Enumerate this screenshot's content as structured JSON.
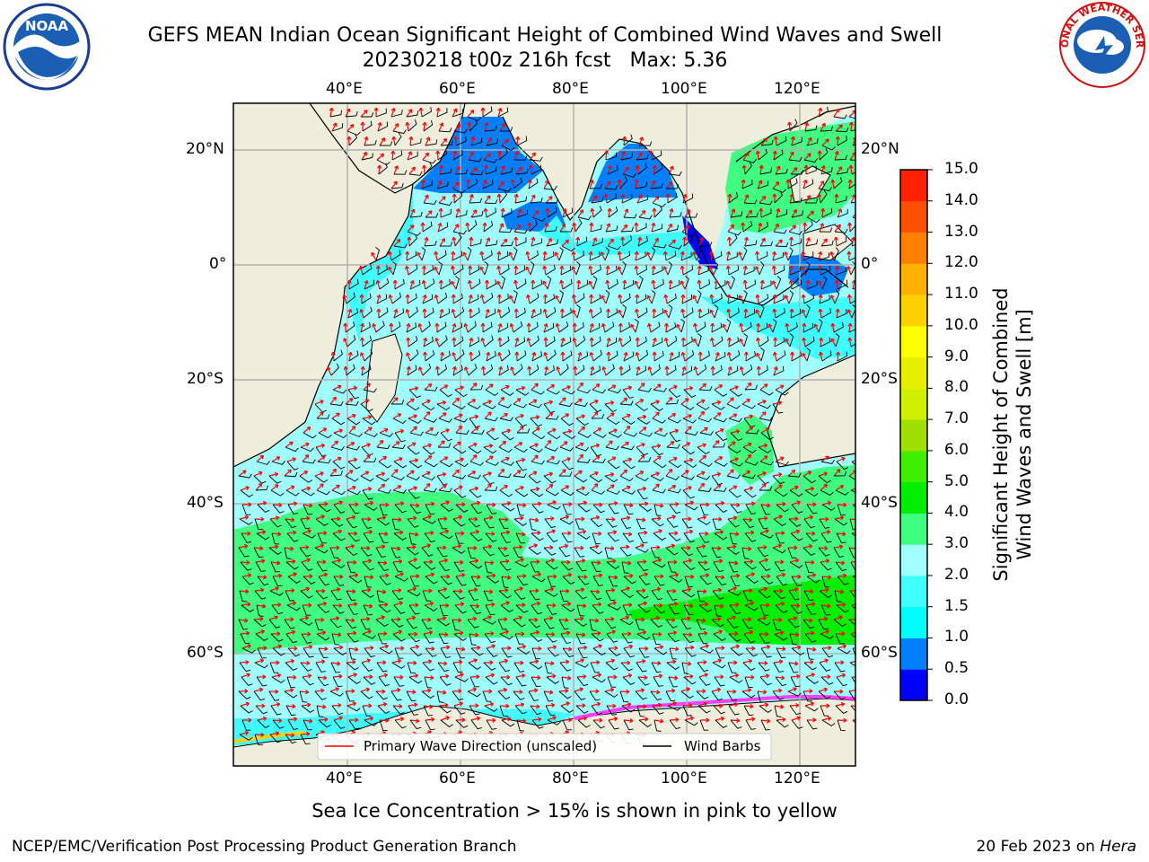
{
  "header": {
    "title_line1": "GEFS MEAN Indian Ocean Significant Height of Combined Wind Waves and Swell",
    "title_line2": "20230218 t00z 216h fcst",
    "max_label": "Max: 5.36"
  },
  "logos": {
    "left": {
      "icon": "noaa-logo",
      "text": "NOAA"
    },
    "right": {
      "icon": "nws-logo",
      "text": "NATIONAL WEATHER SERVICE"
    }
  },
  "map": {
    "lon_ticks": [
      "40°E",
      "60°E",
      "80°E",
      "100°E",
      "120°E"
    ],
    "lat_ticks": [
      "20°N",
      "0°",
      "20°S",
      "40°S",
      "60°S"
    ],
    "land_color": "#efeddc",
    "legend": {
      "wave_label": "Primary Wave Direction (unscaled)",
      "barb_label": "Wind Barbs",
      "wave_color": "#ff0000",
      "barb_color": "#000000"
    }
  },
  "colorbar": {
    "title_line1": "Significant Height of Combined",
    "title_line2": "Wind Waves and Swell [m]",
    "levels": [
      "0.0",
      "0.5",
      "1.0",
      "1.5",
      "2.0",
      "3.0",
      "4.0",
      "5.0",
      "6.0",
      "7.0",
      "8.0",
      "9.0",
      "10.0",
      "11.0",
      "12.0",
      "13.0",
      "14.0",
      "15.0"
    ],
    "colors": [
      "#0000ff",
      "#0080ff",
      "#00ffff",
      "#40ffff",
      "#a0ffff",
      "#40ff80",
      "#00ee00",
      "#40ee00",
      "#a0e000",
      "#d0f000",
      "#e8f000",
      "#ffff00",
      "#ffd000",
      "#ffb000",
      "#ff8000",
      "#ff5000",
      "#ff2000"
    ]
  },
  "note": "Sea Ice Concentration > 15% is shown in pink to yellow",
  "footer": {
    "left": "NCEP/EMC/Verification Post Processing Product Generation Branch",
    "right_date": "20 Feb 2023 on",
    "right_host": "Hera"
  }
}
